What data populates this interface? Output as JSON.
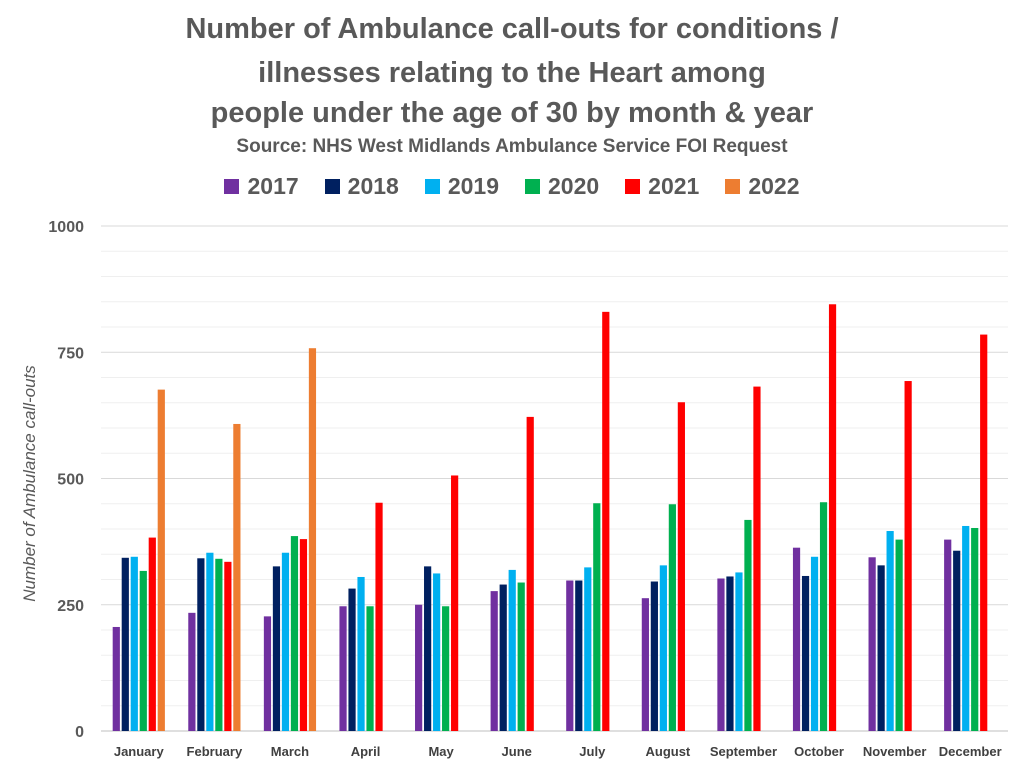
{
  "title_lines": [
    "Number of Ambulance call-outs for conditions /",
    "illnesses relating to the Heart among",
    "people under the age of 30 by month & year"
  ],
  "subtitle": "Source: NHS West Midlands Ambulance Service FOI Request",
  "chart_data": {
    "type": "bar",
    "title": "Number of Ambulance call-outs for conditions / illnesses relating to the Heart among people under the age of 30 by month & year",
    "subtitle": "Source: NHS West Midlands Ambulance Service FOI Request",
    "xlabel": "",
    "ylabel": "Number of Ambulance call-outs",
    "ylim": [
      0,
      1000
    ],
    "yticks": [
      0,
      250,
      500,
      750,
      1000
    ],
    "grid": true,
    "legend_position": "top",
    "categories": [
      "January",
      "February",
      "March",
      "April",
      "May",
      "June",
      "July",
      "August",
      "September",
      "October",
      "November",
      "December"
    ],
    "series": [
      {
        "name": "2017",
        "color": "#7030A0",
        "values": [
          206,
          234,
          227,
          247,
          250,
          277,
          298,
          263,
          302,
          363,
          344,
          379
        ]
      },
      {
        "name": "2018",
        "color": "#002060",
        "values": [
          343,
          342,
          326,
          282,
          326,
          290,
          298,
          296,
          306,
          307,
          328,
          357
        ]
      },
      {
        "name": "2019",
        "color": "#00B0F0",
        "values": [
          345,
          353,
          353,
          305,
          312,
          319,
          324,
          328,
          314,
          345,
          396,
          406
        ]
      },
      {
        "name": "2020",
        "color": "#00B050",
        "values": [
          317,
          341,
          386,
          247,
          247,
          294,
          451,
          449,
          418,
          453,
          379,
          402
        ]
      },
      {
        "name": "2021",
        "color": "#FF0000",
        "values": [
          383,
          335,
          380,
          452,
          506,
          622,
          830,
          651,
          682,
          845,
          693,
          785
        ]
      },
      {
        "name": "2022",
        "color": "#ED7D31",
        "values": [
          676,
          608,
          758,
          null,
          null,
          null,
          null,
          null,
          null,
          null,
          null,
          null
        ]
      }
    ]
  }
}
